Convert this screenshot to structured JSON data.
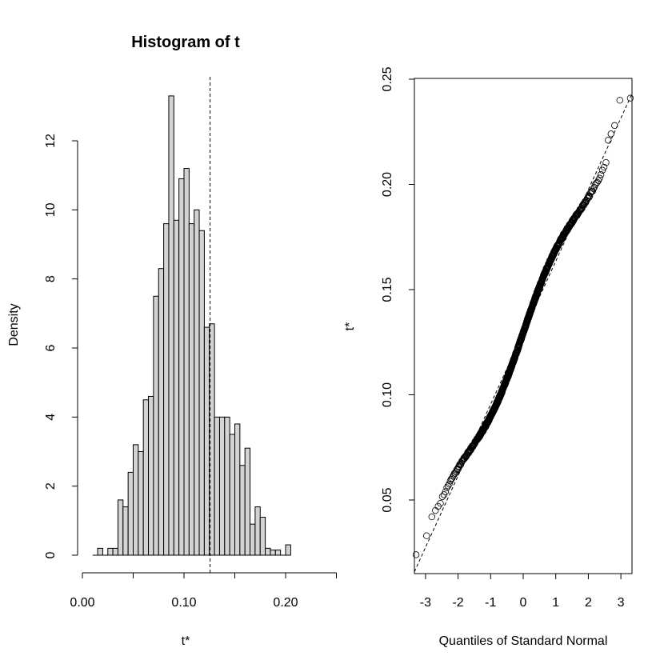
{
  "chart_data": [
    {
      "type": "histogram",
      "title": "Histogram of t",
      "xlabel": "t*",
      "ylabel": "Density",
      "xlim": [
        0.0,
        0.25
      ],
      "ylim": [
        0,
        13.5
      ],
      "x_ticks": [
        "0.00",
        "0.10",
        "0.20"
      ],
      "x_tick_values": [
        0.0,
        0.1,
        0.2
      ],
      "y_ticks": [
        "0",
        "2",
        "4",
        "6",
        "8",
        "10",
        "12"
      ],
      "y_tick_values": [
        0,
        2,
        4,
        6,
        8,
        10,
        12
      ],
      "bin_start": 0.01,
      "bin_width": 0.005,
      "densities": [
        0,
        0.2,
        0,
        0.2,
        0.2,
        1.6,
        1.4,
        2.4,
        3.2,
        3.0,
        4.5,
        4.6,
        7.5,
        8.3,
        9.6,
        13.3,
        9.7,
        10.9,
        11.2,
        9.6,
        10.0,
        9.4,
        6.6,
        6.7,
        4.0,
        4.0,
        4.0,
        3.5,
        3.8,
        2.6,
        3.1,
        0.9,
        1.4,
        1.1,
        0.2,
        0.15,
        0.15,
        0,
        0.3
      ],
      "reference_line": 0.1257,
      "grid": false
    },
    {
      "type": "scatter",
      "subtype": "normal-qq",
      "title": "",
      "xlabel": "Quantiles of Standard Normal",
      "ylabel": "t*",
      "xlim": [
        -3.3,
        3.3
      ],
      "ylim": [
        0.015,
        0.25
      ],
      "x_ticks": [
        "-3",
        "-2",
        "-1",
        "0",
        "1",
        "2",
        "3"
      ],
      "x_tick_values": [
        -3,
        -2,
        -1,
        0,
        1,
        2,
        3
      ],
      "y_ticks": [
        "0.05",
        "0.10",
        "0.15",
        "0.20",
        "0.25"
      ],
      "y_tick_values": [
        0.05,
        0.1,
        0.15,
        0.2,
        0.25
      ],
      "n_points": 1000,
      "reference_line": {
        "intercept": 0.1295,
        "slope": 0.034
      },
      "notable_points": [
        {
          "x": -3.09,
          "y": 0.024
        },
        {
          "x": -2.88,
          "y": 0.033
        },
        {
          "x": -2.75,
          "y": 0.042
        },
        {
          "x": -2.65,
          "y": 0.045
        },
        {
          "x": -2.58,
          "y": 0.047
        },
        {
          "x": 2.58,
          "y": 0.221
        },
        {
          "x": 2.65,
          "y": 0.224
        },
        {
          "x": 2.75,
          "y": 0.228
        },
        {
          "x": 2.88,
          "y": 0.24
        },
        {
          "x": 3.09,
          "y": 0.241
        }
      ],
      "grid": false
    }
  ]
}
